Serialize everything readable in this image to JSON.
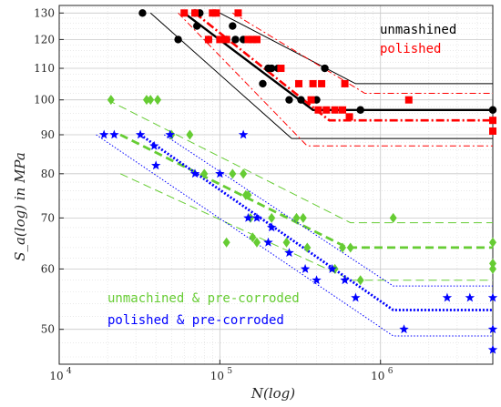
{
  "chart_data": {
    "type": "scatter",
    "title": "",
    "xlabel": "N(log)",
    "ylabel": "S_a(log) in MPa",
    "xscale": "log",
    "yscale": "log",
    "xlim": [
      10000,
      5000000
    ],
    "ylim": [
      45,
      133
    ],
    "grid": true,
    "x_ticks": [
      {
        "value": 10000,
        "base": "10",
        "exp": "4"
      },
      {
        "value": 100000,
        "base": "10",
        "exp": "5"
      },
      {
        "value": 1000000,
        "base": "10",
        "exp": "6"
      }
    ],
    "y_ticks": [
      50,
      60,
      70,
      80,
      90,
      100,
      110,
      120,
      130
    ],
    "legend_placement": "top-right, bottom-left",
    "series": [
      {
        "name": "unmashined",
        "color": "#000000",
        "marker": "circle",
        "points": [
          [
            33000,
            130
          ],
          [
            55000,
            120
          ],
          [
            70000,
            130
          ],
          [
            75000,
            130
          ],
          [
            72000,
            125
          ],
          [
            85000,
            120
          ],
          [
            110000,
            120
          ],
          [
            125000,
            120
          ],
          [
            140000,
            120
          ],
          [
            120000,
            125
          ],
          [
            200000,
            110
          ],
          [
            210000,
            110
          ],
          [
            230000,
            110
          ],
          [
            185000,
            105
          ],
          [
            270000,
            100
          ],
          [
            320000,
            100
          ],
          [
            400000,
            100
          ],
          [
            450000,
            110
          ],
          [
            750000,
            97
          ],
          [
            5000000,
            97
          ]
        ],
        "fit_lines": [
          {
            "style": "solid",
            "width": 2.4,
            "points": [
              [
                60000,
                130
              ],
              [
                380000,
                97
              ],
              [
                5000000,
                97
              ]
            ]
          },
          {
            "style": "solid",
            "width": 1.0,
            "points": [
              [
                100000,
                130
              ],
              [
                700000,
                105
              ],
              [
                5000000,
                105
              ]
            ]
          },
          {
            "style": "solid",
            "width": 1.0,
            "points": [
              [
                37000,
                130
              ],
              [
                280000,
                89
              ],
              [
                5000000,
                89
              ]
            ]
          }
        ]
      },
      {
        "name": "polished",
        "color": "#ff0000",
        "marker": "square",
        "points": [
          [
            60000,
            130
          ],
          [
            70000,
            130
          ],
          [
            90000,
            130
          ],
          [
            95000,
            130
          ],
          [
            130000,
            130
          ],
          [
            85000,
            120
          ],
          [
            100000,
            120
          ],
          [
            110000,
            120
          ],
          [
            150000,
            120
          ],
          [
            160000,
            120
          ],
          [
            170000,
            120
          ],
          [
            240000,
            110
          ],
          [
            310000,
            105
          ],
          [
            380000,
            105
          ],
          [
            430000,
            105
          ],
          [
            600000,
            105
          ],
          [
            370000,
            100
          ],
          [
            410000,
            97
          ],
          [
            460000,
            97
          ],
          [
            520000,
            97
          ],
          [
            580000,
            97
          ],
          [
            640000,
            95
          ],
          [
            1500000,
            100
          ],
          [
            5000000,
            94
          ],
          [
            5000000,
            91
          ]
        ],
        "fit_lines": [
          {
            "style": "dash-dot-thick",
            "width": 2.6,
            "points": [
              [
                70000,
                130
              ],
              [
                480000,
                94
              ],
              [
                5000000,
                94
              ]
            ]
          },
          {
            "style": "dash-dot",
            "width": 1.0,
            "points": [
              [
                120000,
                130
              ],
              [
                800000,
                102
              ],
              [
                5000000,
                102
              ]
            ]
          },
          {
            "style": "dash-dot",
            "width": 1.0,
            "points": [
              [
                55000,
                130
              ],
              [
                350000,
                87
              ],
              [
                5000000,
                87
              ]
            ]
          }
        ]
      },
      {
        "name": "unmachined & pre-corroded",
        "color": "#66cc33",
        "marker": "diamond",
        "points": [
          [
            21000,
            100
          ],
          [
            35000,
            100
          ],
          [
            37000,
            100
          ],
          [
            41000,
            100
          ],
          [
            50000,
            90
          ],
          [
            65000,
            90
          ],
          [
            80000,
            80
          ],
          [
            120000,
            80
          ],
          [
            140000,
            80
          ],
          [
            145000,
            75
          ],
          [
            150000,
            75
          ],
          [
            155000,
            70
          ],
          [
            110000,
            65
          ],
          [
            160000,
            66
          ],
          [
            170000,
            65
          ],
          [
            210000,
            70
          ],
          [
            260000,
            65
          ],
          [
            300000,
            70
          ],
          [
            330000,
            70
          ],
          [
            350000,
            64
          ],
          [
            580000,
            64
          ],
          [
            520000,
            60
          ],
          [
            650000,
            64
          ],
          [
            750000,
            58
          ],
          [
            1200000,
            70
          ],
          [
            5000000,
            65
          ],
          [
            5000000,
            61
          ],
          [
            5000000,
            60
          ]
        ],
        "fit_lines": [
          {
            "style": "dashed-thick",
            "width": 2.8,
            "points": [
              [
                24000,
                90
              ],
              [
                620000,
                64
              ],
              [
                5000000,
                64
              ]
            ]
          },
          {
            "style": "dashed",
            "width": 1.0,
            "points": [
              [
                20000,
                100
              ],
              [
                650000,
                69
              ],
              [
                5000000,
                69
              ]
            ]
          },
          {
            "style": "dashed",
            "width": 1.0,
            "points": [
              [
                24000,
                80
              ],
              [
                660000,
                58
              ],
              [
                5000000,
                58
              ]
            ]
          }
        ]
      },
      {
        "name": "polished & pre-corroded",
        "color": "#0000ff",
        "marker": "star",
        "points": [
          [
            19000,
            90
          ],
          [
            22000,
            90
          ],
          [
            32000,
            90
          ],
          [
            39000,
            87
          ],
          [
            40000,
            82
          ],
          [
            49000,
            90
          ],
          [
            70000,
            80
          ],
          [
            100000,
            80
          ],
          [
            140000,
            90
          ],
          [
            150000,
            70
          ],
          [
            170000,
            70
          ],
          [
            200000,
            65
          ],
          [
            210000,
            68
          ],
          [
            270000,
            63
          ],
          [
            340000,
            60
          ],
          [
            400000,
            58
          ],
          [
            500000,
            60
          ],
          [
            600000,
            58
          ],
          [
            700000,
            55
          ],
          [
            1400000,
            50
          ],
          [
            2600000,
            55
          ],
          [
            3600000,
            55
          ],
          [
            5000000,
            55
          ],
          [
            5000000,
            50
          ],
          [
            5000000,
            47
          ]
        ],
        "fit_lines": [
          {
            "style": "dotted-thick",
            "width": 2.8,
            "points": [
              [
                32000,
                90
              ],
              [
                1200000,
                53
              ],
              [
                5000000,
                53
              ]
            ]
          },
          {
            "style": "dotted",
            "width": 1.0,
            "points": [
              [
                17000,
                90
              ],
              [
                1200000,
                49
              ],
              [
                5000000,
                49
              ]
            ]
          },
          {
            "style": "dotted",
            "width": 1.0,
            "points": [
              [
                45000,
                90
              ],
              [
                1200000,
                57
              ],
              [
                5000000,
                57
              ]
            ]
          }
        ]
      }
    ]
  }
}
